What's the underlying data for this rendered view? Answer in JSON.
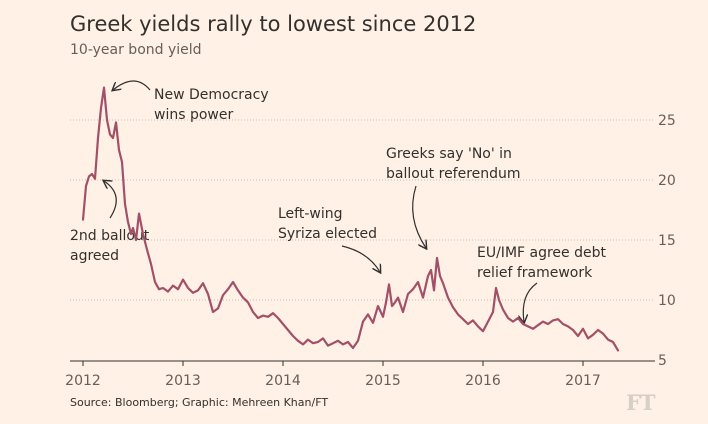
{
  "title": "Greek yields rally to lowest since 2012",
  "subtitle": "10-year bond yield",
  "source": "Source: Bloomberg; Graphic: Mehreen Khan/FT",
  "logo": "FT",
  "colors": {
    "line": "#A25068",
    "background": "#FFF1E5",
    "grid": "#C8BDB4"
  },
  "chart_data": {
    "type": "line",
    "title": "Greek yields rally to lowest since 2012",
    "subtitle": "10-year bond yield",
    "xlabel": "",
    "ylabel": "",
    "xlim": [
      2012.0,
      2017.5
    ],
    "ylim": [
      5,
      28
    ],
    "yticks": [
      5,
      10,
      15,
      20,
      25
    ],
    "xticks": [
      2012,
      2013,
      2014,
      2015,
      2016,
      2017
    ],
    "grid": "horizontal dotted",
    "series": [
      {
        "name": "10-year bond yield",
        "x": [
          2012.0,
          2012.03,
          2012.06,
          2012.09,
          2012.12,
          2012.15,
          2012.18,
          2012.21,
          2012.24,
          2012.27,
          2012.3,
          2012.33,
          2012.36,
          2012.39,
          2012.42,
          2012.45,
          2012.48,
          2012.5,
          2012.53,
          2012.56,
          2012.6,
          2012.64,
          2012.68,
          2012.72,
          2012.76,
          2012.8,
          2012.85,
          2012.9,
          2012.95,
          2013.0,
          2013.05,
          2013.1,
          2013.15,
          2013.2,
          2013.25,
          2013.3,
          2013.35,
          2013.4,
          2013.45,
          2013.5,
          2013.55,
          2013.6,
          2013.65,
          2013.7,
          2013.75,
          2013.8,
          2013.85,
          2013.9,
          2013.95,
          2014.0,
          2014.05,
          2014.1,
          2014.15,
          2014.2,
          2014.25,
          2014.3,
          2014.35,
          2014.4,
          2014.45,
          2014.5,
          2014.55,
          2014.6,
          2014.65,
          2014.7,
          2014.75,
          2014.8,
          2014.85,
          2014.9,
          2014.95,
          2015.0,
          2015.03,
          2015.06,
          2015.09,
          2015.12,
          2015.15,
          2015.2,
          2015.25,
          2015.3,
          2015.35,
          2015.4,
          2015.45,
          2015.48,
          2015.51,
          2015.54,
          2015.57,
          2015.6,
          2015.65,
          2015.7,
          2015.75,
          2015.8,
          2015.85,
          2015.9,
          2015.95,
          2016.0,
          2016.05,
          2016.1,
          2016.13,
          2016.16,
          2016.2,
          2016.25,
          2016.3,
          2016.35,
          2016.4,
          2016.45,
          2016.5,
          2016.55,
          2016.6,
          2016.65,
          2016.7,
          2016.75,
          2016.8,
          2016.85,
          2016.9,
          2016.95,
          2017.0,
          2017.05,
          2017.1,
          2017.15,
          2017.2,
          2017.25,
          2017.3,
          2017.35
        ],
        "values": [
          16.7,
          19.5,
          20.3,
          20.5,
          20.1,
          23.5,
          26.0,
          27.7,
          25.0,
          23.8,
          23.5,
          24.8,
          22.5,
          21.5,
          18.0,
          16.5,
          15.5,
          16.0,
          15.0,
          17.2,
          15.5,
          14.2,
          13.0,
          11.5,
          10.9,
          11.0,
          10.7,
          11.2,
          10.9,
          11.7,
          11.0,
          10.6,
          10.8,
          11.4,
          10.5,
          9.0,
          9.3,
          10.4,
          10.9,
          11.5,
          10.8,
          10.2,
          9.8,
          9.0,
          8.5,
          8.7,
          8.6,
          8.9,
          8.5,
          8.0,
          7.5,
          7.0,
          6.6,
          6.3,
          6.7,
          6.4,
          6.5,
          6.8,
          6.2,
          6.4,
          6.6,
          6.3,
          6.5,
          6.0,
          6.6,
          8.2,
          8.8,
          8.1,
          9.5,
          8.6,
          9.8,
          11.3,
          9.5,
          9.8,
          10.2,
          9.0,
          10.5,
          10.9,
          11.5,
          10.2,
          12.0,
          12.5,
          10.8,
          13.5,
          12.0,
          11.4,
          10.2,
          9.4,
          8.8,
          8.4,
          8.0,
          8.3,
          7.8,
          7.4,
          8.2,
          9.0,
          11.0,
          10.0,
          9.2,
          8.5,
          8.2,
          8.5,
          8.0,
          7.8,
          7.6,
          7.9,
          8.2,
          8.0,
          8.3,
          8.4,
          8.0,
          7.8,
          7.5,
          7.0,
          7.6,
          6.8,
          7.1,
          7.5,
          7.2,
          6.7,
          6.5,
          5.8
        ]
      }
    ],
    "annotations": [
      {
        "id": "new-democracy",
        "lines": [
          "New Democracy",
          "wins power"
        ],
        "x": 2012.22,
        "y": 27.7
      },
      {
        "id": "second-ballout",
        "lines": [
          "2nd ballout",
          "agreed"
        ],
        "x": 2012.18,
        "y": 20.0
      },
      {
        "id": "syriza",
        "lines": [
          "Left-wing",
          "Syriza elected"
        ],
        "x": 2015.07,
        "y": 9.8
      },
      {
        "id": "greeks-no",
        "lines": [
          "Greeks say 'No' in",
          "ballout referendum"
        ],
        "x": 2015.51,
        "y": 13.5
      },
      {
        "id": "eu-imf",
        "lines": [
          "EU/IMF agree debt",
          "relief framework"
        ],
        "x": 2016.4,
        "y": 7.6
      }
    ]
  }
}
